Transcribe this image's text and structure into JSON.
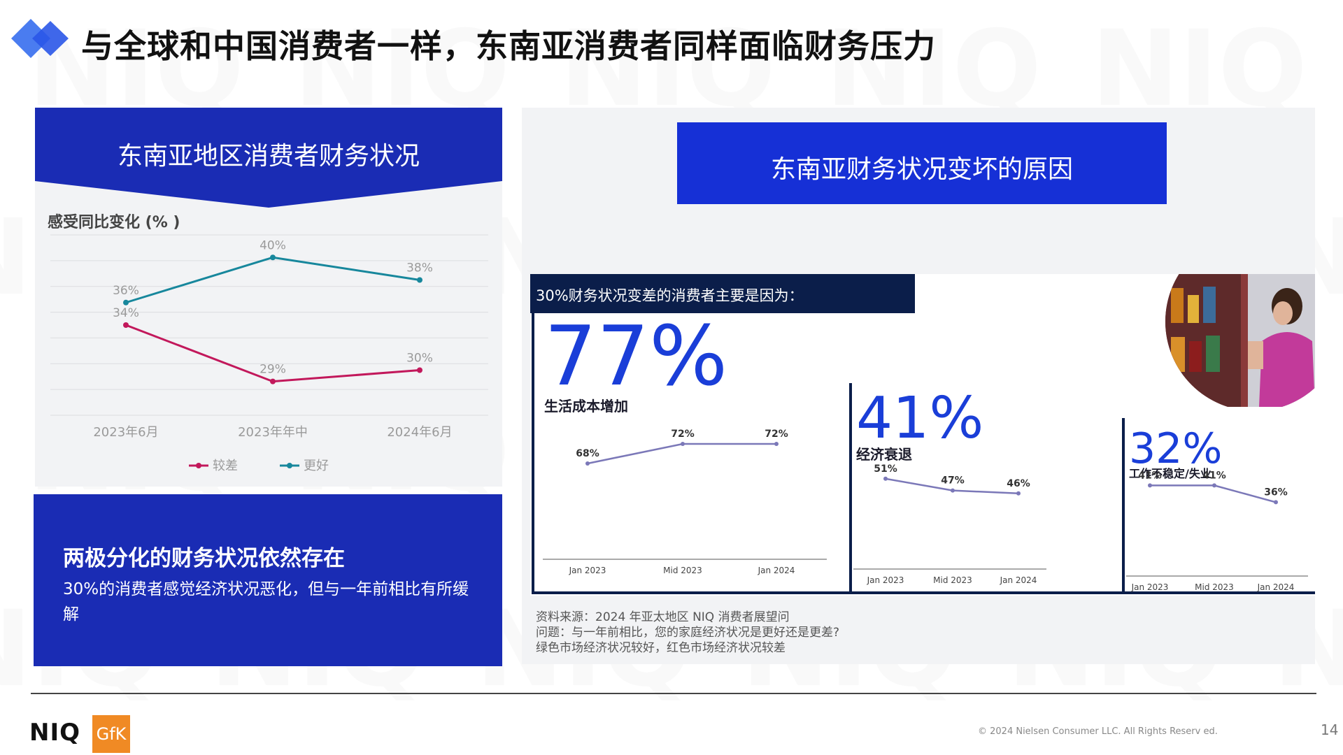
{
  "header": {
    "title": "与全球和中国消费者一样，东南亚消费者同样面临财务压力"
  },
  "watermark": "NIQ",
  "left_panel": {
    "banner_title": "东南亚地区消费者财务状况",
    "ylabel": "感受同比变化 (% )",
    "legend_worse": "较差",
    "legend_better": "更好"
  },
  "left_bottom": {
    "title": "两极分化的财务状况依然存在",
    "text": "30%的消费者感觉经济状况恶化，但与一年前相比有所缓解"
  },
  "right_panel": {
    "banner_title": "东南亚财务状况变坏的原因",
    "embed_title": "30%财务状况变差的消费者主要是因为：",
    "sources": [
      "资料来源：2024 年亚太地区 NIQ 消费者展望问",
      "问题：与一年前相比，您的家庭经济状况是更好还是更差?",
      "绿色市场经济状况较好，红色市场经济状况较差"
    ]
  },
  "footer": {
    "logo_niq": "NIQ",
    "logo_gfk": "GfK",
    "copyright": "© 2024 Nielsen Consumer LLC. All Rights Reserv ed.",
    "page_number": "14"
  },
  "colors": {
    "accent_blue": "#1a2cb4",
    "banner_blue": "#1630d6",
    "worse": "#c2185b",
    "better": "#17879c",
    "mini_line": "#7b78b8",
    "big_number": "#1a3ed8"
  },
  "chart_data": [
    {
      "type": "line",
      "categories": [
        "2023年6月",
        "2023年年中",
        "2024年6月"
      ],
      "series": [
        {
          "name": "较差",
          "values": [
            34,
            29,
            30
          ],
          "labels": [
            "34%",
            "29%",
            "30%"
          ]
        },
        {
          "name": "更好",
          "values": [
            36,
            40,
            38
          ],
          "labels": [
            "36%",
            "40%",
            "38%"
          ]
        }
      ],
      "ylabel": "感受同比变化 (% )",
      "ylim": [
        26,
        42
      ],
      "grid": true,
      "legend": "bottom"
    },
    {
      "type": "line",
      "headline": "77%",
      "label": "生活成本增加",
      "categories": [
        "Jan 2023",
        "Mid 2023",
        "Jan 2024"
      ],
      "values": [
        68,
        72,
        72
      ],
      "value_labels": [
        "68%",
        "72%",
        "72%"
      ]
    },
    {
      "type": "line",
      "headline": "41%",
      "label": "经济衰退",
      "categories": [
        "Jan 2023",
        "Mid 2023",
        "Jan 2024"
      ],
      "values": [
        51,
        47,
        46
      ],
      "value_labels": [
        "51%",
        "47%",
        "46%"
      ]
    },
    {
      "type": "line",
      "headline": "32%",
      "label": "工作不稳定/失业",
      "categories": [
        "Jan 2023",
        "Mid 2023",
        "Jan 2024"
      ],
      "values": [
        41,
        41,
        36
      ],
      "value_labels": [
        "41%",
        "41%",
        "36%"
      ]
    }
  ]
}
